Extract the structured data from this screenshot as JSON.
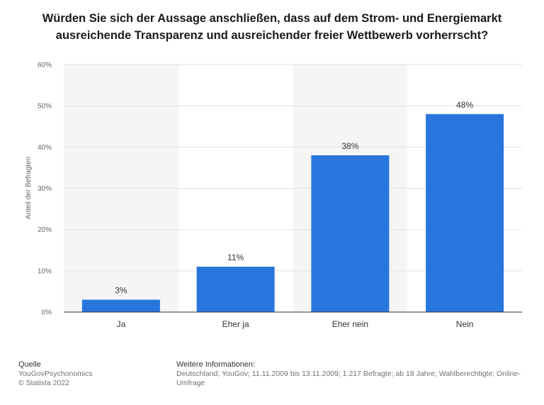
{
  "chart_data": {
    "type": "bar",
    "title_lines": [
      "Würden Sie sich der Aussage anschließen, dass auf dem Strom- und Energiemarkt",
      "ausreichende Transparenz und ausreichender freier Wettbewerb vorherrscht?"
    ],
    "categories": [
      "Ja",
      "Eher ja",
      "Eher nein",
      "Nein"
    ],
    "values": [
      3,
      11,
      38,
      48
    ],
    "value_labels": [
      "3%",
      "11%",
      "38%",
      "48%"
    ],
    "ylabel": "Anteil der Befragten",
    "ylim": [
      0,
      60
    ],
    "yticks": [
      0,
      10,
      20,
      30,
      40,
      50,
      60
    ],
    "ytick_labels": [
      "0%",
      "10%",
      "20%",
      "30%",
      "40%",
      "50%",
      "60%"
    ],
    "grid": true,
    "bar_color": "#2876dd"
  },
  "footer": {
    "source_heading": "Quelle",
    "source_line1": "YouGovPsychonomics",
    "source_line2": "© Statista 2022",
    "info_heading": "Weitere Informationen:",
    "info_text": "Deutschland; YouGov; 11.11.2009 bis 13.11.2009; 1.217 Befragte; ab 18 Jahre; Wahlberechtigte; Online-Umfrage"
  }
}
